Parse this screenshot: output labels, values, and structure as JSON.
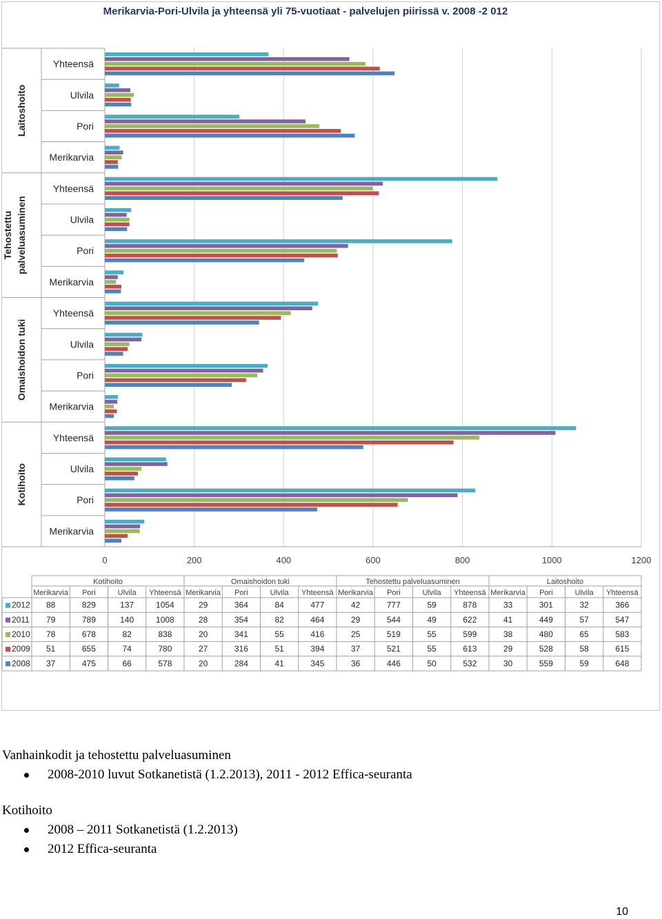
{
  "chart_data": {
    "type": "bar",
    "orientation": "horizontal",
    "title": "Merikarvia-Pori-Ulvila ja yhteensä yli 75-vuotiaat - palvelujen piirissä v. 2008 -2 012",
    "xlim": [
      0,
      1200
    ],
    "xticks": [
      "0",
      "200",
      "400",
      "600",
      "800",
      "1000",
      "1200"
    ],
    "grid": "vertical",
    "legend": "table-left",
    "groups": [
      "Kotihoito",
      "Omaishoidon tuki",
      "Tehostettu palveluasuminen",
      "Laitoshoito"
    ],
    "group_axis_labels": [
      "Kotihoito",
      "Omaishoidon tuki",
      "Tehostettu\npalveluasuminen",
      "Laitoshoito"
    ],
    "municipalities": [
      "Merikarvia",
      "Pori",
      "Ulvila",
      "Yhteensä"
    ],
    "series": [
      {
        "name": "2012",
        "color": "#4bacc6",
        "values": [
          [
            88,
            829,
            137,
            1054
          ],
          [
            29,
            364,
            84,
            477
          ],
          [
            42,
            777,
            59,
            878
          ],
          [
            33,
            301,
            32,
            366
          ]
        ]
      },
      {
        "name": "2011",
        "color": "#8064a2",
        "values": [
          [
            79,
            789,
            140,
            1008
          ],
          [
            28,
            354,
            82,
            464
          ],
          [
            29,
            544,
            49,
            622
          ],
          [
            41,
            449,
            57,
            547
          ]
        ]
      },
      {
        "name": "2010",
        "color": "#9bbb59",
        "values": [
          [
            78,
            678,
            82,
            838
          ],
          [
            20,
            341,
            55,
            416
          ],
          [
            25,
            519,
            55,
            599
          ],
          [
            38,
            480,
            65,
            583
          ]
        ]
      },
      {
        "name": "2009",
        "color": "#c0504d",
        "values": [
          [
            51,
            655,
            74,
            780
          ],
          [
            27,
            316,
            51,
            394
          ],
          [
            37,
            521,
            55,
            613
          ],
          [
            29,
            528,
            58,
            615
          ]
        ]
      },
      {
        "name": "2008",
        "color": "#4f81bd",
        "values": [
          [
            37,
            475,
            66,
            578
          ],
          [
            20,
            284,
            41,
            345
          ],
          [
            36,
            446,
            50,
            532
          ],
          [
            30,
            559,
            59,
            648
          ]
        ]
      }
    ]
  },
  "notes": {
    "line1": "Vanhainkodit ja tehostettu palveluasuminen",
    "line1_bullet1": "2008-2010 luvut Sotkanetistä (1.2.2013), 2011 - 2012 Effica-seuranta",
    "line2": "Kotihoito",
    "line2_bullet1": "2008 – 2011 Sotkanetistä (1.2.2013)",
    "line2_bullet2": "2012 Effica-seuranta"
  },
  "page_number": "10"
}
